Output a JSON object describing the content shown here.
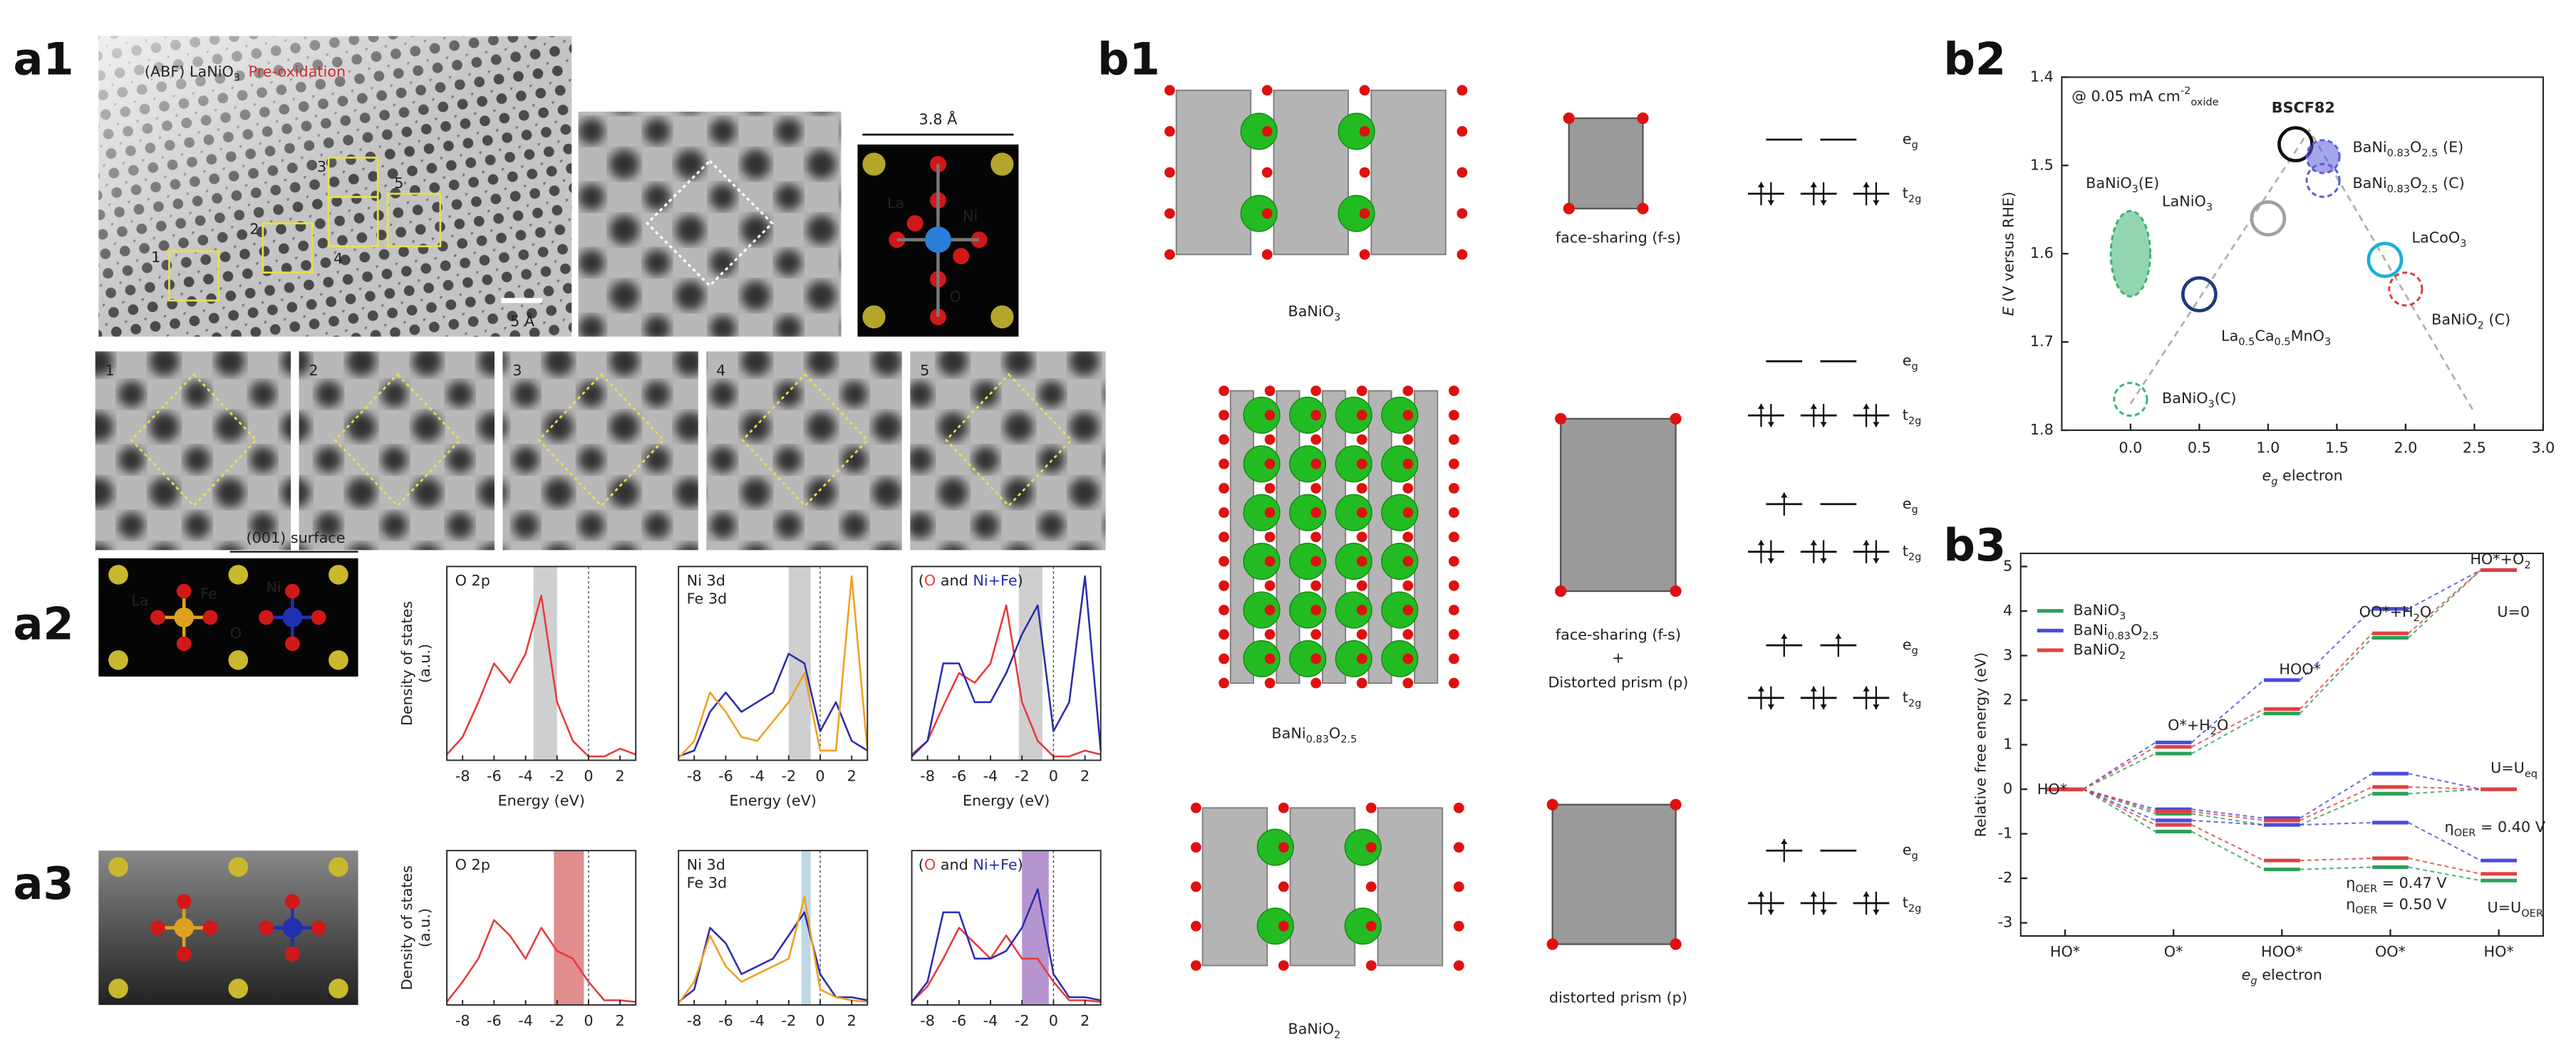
{
  "figure": {
    "panel_labels": [
      "a1",
      "a2",
      "a3",
      "b1",
      "b2",
      "b3"
    ],
    "a1": {
      "title": [
        "(ABF) LaNiO",
        {
          "text": "3",
          "style": "sub"
        }
      ],
      "condition": "Pre-oxidation",
      "scale_bar": "5 Å",
      "lattice_constant": "3.8 Å",
      "atoms": [
        "La",
        "Ni",
        "O"
      ],
      "regions": [
        "1",
        "2",
        "3",
        "4",
        "5"
      ]
    },
    "a2": {
      "surface": "(001) surface",
      "atoms": [
        "La",
        "Fe",
        "Ni",
        "O"
      ]
    },
    "b1": {
      "compounds": [
        [
          "BaNiO",
          {
            "text": "3",
            "style": "sub"
          }
        ],
        [
          "BaNi",
          {
            "text": "0.83",
            "style": "sub"
          },
          "O",
          {
            "text": "2.5",
            "style": "sub"
          }
        ],
        [
          "BaNiO",
          {
            "text": "2",
            "style": "sub"
          }
        ]
      ],
      "geometries": [
        "face-sharing (f-s)",
        "face-sharing (f-s)",
        "+",
        "Distorted prism (p)",
        "distorted prism (p)"
      ],
      "orbitals": [
        [
          "e",
          {
            "text": "g",
            "style": "sub"
          }
        ],
        [
          "t",
          {
            "text": "2g",
            "style": "sub"
          }
        ]
      ]
    }
  },
  "chart_data": [
    {
      "type": "line",
      "xlim": [
        -9,
        3
      ],
      "ylim": [
        0,
        1
      ],
      "xticks": [
        -8,
        -6,
        -4,
        -2,
        0,
        2
      ],
      "fermi_level": 0,
      "xlabel": "Energy (eV)",
      "ylabel_lines": [
        "Density of states",
        "(a.u.)"
      ],
      "x": [
        -9,
        -8,
        -7,
        -6,
        -5,
        -4,
        -3,
        -2,
        -1,
        0,
        1,
        2,
        3
      ],
      "shade": [
        -3.5,
        -2
      ],
      "shade_color": "#b5b5b5",
      "series": [
        {
          "name": "O 2p",
          "color": "#e8393a",
          "values": [
            0.03,
            0.12,
            0.3,
            0.5,
            0.4,
            0.55,
            0.85,
            0.3,
            0.1,
            0.02,
            0.02,
            0.06,
            0.03
          ]
        }
      ]
    },
    {
      "type": "line",
      "xlim": [
        -9,
        3
      ],
      "ylim": [
        0,
        1
      ],
      "xticks": [
        -8,
        -6,
        -4,
        -2,
        0,
        2
      ],
      "fermi_level": 0,
      "xlabel": "Energy (eV)",
      "x": [
        -9,
        -8,
        -7,
        -6,
        -5,
        -4,
        -3,
        -2,
        -1,
        0,
        1,
        2,
        3
      ],
      "shade": [
        -2,
        -0.6
      ],
      "shade_color": "#b5b5b5",
      "series": [
        {
          "name": "Ni 3d",
          "color": "#2b2bb0",
          "values": [
            0.02,
            0.05,
            0.25,
            0.35,
            0.25,
            0.3,
            0.35,
            0.55,
            0.5,
            0.15,
            0.3,
            0.1,
            0.05
          ]
        },
        {
          "name": "Fe 3d",
          "color": "#f0a020",
          "values": [
            0.01,
            0.1,
            0.35,
            0.25,
            0.12,
            0.1,
            0.2,
            0.3,
            0.45,
            0.05,
            0.05,
            0.95,
            0.05
          ]
        }
      ]
    },
    {
      "type": "line",
      "xlim": [
        -9,
        3
      ],
      "ylim": [
        0,
        1
      ],
      "xticks": [
        -8,
        -6,
        -4,
        -2,
        0,
        2
      ],
      "fermi_level": 0,
      "xlabel": "Energy (eV)",
      "title": [
        "(",
        {
          "text": "O",
          "color": "#e8393a"
        },
        " and ",
        {
          "text": "Ni+Fe",
          "color": "#2b2bb0"
        },
        ")"
      ],
      "x": [
        -9,
        -8,
        -7,
        -6,
        -5,
        -4,
        -3,
        -2,
        -1,
        0,
        1,
        2,
        3
      ],
      "shade": [
        -2.2,
        -0.7
      ],
      "shade_color": "#b5b5b5",
      "series": [
        {
          "color": "#e8393a",
          "values": [
            0.03,
            0.1,
            0.28,
            0.45,
            0.4,
            0.5,
            0.8,
            0.3,
            0.1,
            0.02,
            0.02,
            0.05,
            0.03
          ]
        },
        {
          "color": "#2b2bb0",
          "values": [
            0.02,
            0.1,
            0.5,
            0.5,
            0.3,
            0.3,
            0.45,
            0.65,
            0.8,
            0.15,
            0.3,
            0.95,
            0.05
          ]
        }
      ]
    },
    {
      "type": "line",
      "xlim": [
        -9,
        3
      ],
      "ylim": [
        0,
        1
      ],
      "xticks": [
        -8,
        -6,
        -4,
        -2,
        0,
        2
      ],
      "fermi_level": 0,
      "ylabel_lines": [
        "Density of states",
        "(a.u.)"
      ],
      "x": [
        -9,
        -8,
        -7,
        -6,
        -5,
        -4,
        -3,
        -2,
        -1,
        0,
        1,
        2,
        3
      ],
      "shade": [
        -2.2,
        -0.3
      ],
      "shade_color": "#d05050",
      "series": [
        {
          "name": "O 2p",
          "color": "#e8393a",
          "values": [
            0.02,
            0.15,
            0.3,
            0.55,
            0.45,
            0.3,
            0.5,
            0.35,
            0.3,
            0.15,
            0.03,
            0.03,
            0.02
          ]
        }
      ]
    },
    {
      "type": "line",
      "xlim": [
        -9,
        3
      ],
      "ylim": [
        0,
        1
      ],
      "xticks": [
        -8,
        -6,
        -4,
        -2,
        0,
        2
      ],
      "fermi_level": 0,
      "x": [
        -9,
        -8,
        -7,
        -6,
        -5,
        -4,
        -3,
        -2,
        -1,
        0,
        1,
        2,
        3
      ],
      "shade": [
        -1.2,
        -0.6
      ],
      "shade_color": "#9cc3d5",
      "series": [
        {
          "name": "Ni 3d",
          "color": "#2b2bb0",
          "values": [
            0.02,
            0.1,
            0.5,
            0.4,
            0.2,
            0.25,
            0.3,
            0.45,
            0.6,
            0.2,
            0.05,
            0.05,
            0.03
          ]
        },
        {
          "name": "Fe 3d",
          "color": "#f0a020",
          "values": [
            0.01,
            0.15,
            0.45,
            0.25,
            0.15,
            0.2,
            0.25,
            0.3,
            0.7,
            0.1,
            0.05,
            0.03,
            0.02
          ]
        }
      ]
    },
    {
      "type": "line",
      "xlim": [
        -9,
        3
      ],
      "ylim": [
        0,
        1
      ],
      "xticks": [
        -8,
        -6,
        -4,
        -2,
        0,
        2
      ],
      "fermi_level": 0,
      "title": [
        "(",
        {
          "text": "O",
          "color": "#e8393a"
        },
        " and ",
        {
          "text": "Ni+Fe",
          "color": "#2b2bb0"
        },
        ")"
      ],
      "x": [
        -9,
        -8,
        -7,
        -6,
        -5,
        -4,
        -3,
        -2,
        -1,
        0,
        1,
        2,
        3
      ],
      "shade": [
        -2,
        -0.3
      ],
      "shade_color": "#8e5bb5",
      "series": [
        {
          "color": "#e8393a",
          "values": [
            0.02,
            0.12,
            0.3,
            0.5,
            0.4,
            0.3,
            0.45,
            0.3,
            0.3,
            0.15,
            0.03,
            0.03,
            0.02
          ]
        },
        {
          "color": "#2b2bb0",
          "values": [
            0.02,
            0.15,
            0.6,
            0.6,
            0.3,
            0.3,
            0.35,
            0.5,
            0.75,
            0.2,
            0.05,
            0.05,
            0.03
          ]
        }
      ]
    },
    {
      "type": "scatter",
      "xlim": [
        -0.5,
        3
      ],
      "ylim": [
        1.4,
        1.8
      ],
      "y_inverted": true,
      "xticks": [
        {
          "value": 0,
          "label": "0.0"
        },
        0.5,
        {
          "value": 1,
          "label": "1.0"
        },
        1.5,
        {
          "value": 2,
          "label": "2.0"
        },
        2.5,
        {
          "value": 3,
          "label": "3.0"
        }
      ],
      "yticks": [
        1.4,
        1.5,
        1.6,
        1.7,
        1.8
      ],
      "xlabel": [
        {
          "text": "e",
          "style": "italic"
        },
        {
          "text": "g",
          "style": "sub italic"
        },
        " electron"
      ],
      "ylabel": [
        {
          "text": "E",
          "style": "italic"
        },
        " (V versus RHE)"
      ],
      "annotation": [
        "@ 0.05 mA cm",
        {
          "text": "-2",
          "style": "sup"
        },
        {
          "text": "oxide",
          "style": "sub"
        }
      ],
      "guide": {
        "x": [
          0,
          1.3,
          2.5
        ],
        "y": [
          1.77,
          1.46,
          1.78
        ],
        "color": "#b0b0b0"
      },
      "points": [
        {
          "name": [
            "BaNiO",
            {
              "text": "3",
              "style": "sub"
            },
            "(E)"
          ],
          "x": 0,
          "y": 1.6,
          "color": "#3cb371",
          "style": "ellipse filled dashed"
        },
        {
          "name": [
            "BaNiO",
            {
              "text": "3",
              "style": "sub"
            },
            "(C)"
          ],
          "x": 0,
          "y": 1.765,
          "color": "#3cb371",
          "style": "dashed"
        },
        {
          "name": [
            "LaNiO",
            {
              "text": "3",
              "style": "sub"
            }
          ],
          "x": 1,
          "y": 1.56,
          "color": "#a0a0a0",
          "style": "solid"
        },
        {
          "name": "BSCF82",
          "x": 1.2,
          "y": 1.476,
          "color": "#111111",
          "style": "solid bold"
        },
        {
          "name": [
            "BaNi",
            {
              "text": "0.83",
              "style": "sub"
            },
            "O",
            {
              "text": "2.5",
              "style": "sub"
            },
            " (E)"
          ],
          "x": 1.4,
          "y": 1.49,
          "color": "#5b5bdc",
          "style": "filled dashed"
        },
        {
          "name": [
            "BaNi",
            {
              "text": "0.83",
              "style": "sub"
            },
            "O",
            {
              "text": "2.5",
              "style": "sub"
            },
            " (C)"
          ],
          "x": 1.4,
          "y": 1.517,
          "color": "#5b5bdc",
          "style": "dashed"
        },
        {
          "name": [
            "La",
            {
              "text": "0.5",
              "style": "sub"
            },
            "Ca",
            {
              "text": "0.5",
              "style": "sub"
            },
            "MnO",
            {
              "text": "3",
              "style": "sub"
            }
          ],
          "x": 0.5,
          "y": 1.646,
          "color": "#1f3a7a",
          "style": "solid"
        },
        {
          "name": [
            "LaCoO",
            {
              "text": "3",
              "style": "sub"
            }
          ],
          "x": 1.85,
          "y": 1.607,
          "color": "#1ab0d8",
          "style": "solid"
        },
        {
          "name": [
            "BaNiO",
            {
              "text": "2",
              "style": "sub"
            },
            " (C)"
          ],
          "x": 2,
          "y": 1.64,
          "color": "#e03a3a",
          "style": "dashed"
        }
      ]
    },
    {
      "type": "profile",
      "categories": [
        "HO*",
        "O*",
        "HOO*",
        "OO*",
        "HO*"
      ],
      "xlabel": [
        {
          "text": "e",
          "style": "italic"
        },
        {
          "text": "g",
          "style": "sub italic"
        },
        " electron"
      ],
      "ylabel": "Relative free energy (eV)",
      "ylim": [
        -3,
        5
      ],
      "yticks": [
        -3,
        -2,
        -1,
        0,
        1,
        2,
        3,
        4,
        5
      ],
      "conditions": [
        "U=0",
        [
          "U=U",
          {
            "text": "eq",
            "style": "sub"
          }
        ],
        [
          "U=U",
          {
            "text": "OER",
            "style": "sub"
          }
        ]
      ],
      "series": [
        {
          "name": [
            "BaNiO",
            {
              "text": "3",
              "style": "sub"
            }
          ],
          "color": "#2ca05a",
          "values": [
            [
              0,
              0.8,
              1.7,
              3.4,
              4.92
            ],
            [
              0,
              -0.55,
              -0.8,
              -0.1,
              0
            ],
            [
              0,
              -0.95,
              -1.8,
              -1.75,
              -2.05
            ]
          ]
        },
        {
          "name": [
            "BaNi",
            {
              "text": "0.83",
              "style": "sub"
            },
            "O",
            {
              "text": "2.5",
              "style": "sub"
            }
          ],
          "color": "#4a4ae0",
          "values": [
            [
              0,
              1.05,
              2.45,
              4.05,
              4.92
            ],
            [
              0,
              -0.45,
              -0.65,
              0.35,
              0
            ],
            [
              0,
              -0.7,
              -0.8,
              -0.75,
              -1.6
            ]
          ]
        },
        {
          "name": [
            "BaNiO",
            {
              "text": "2",
              "style": "sub"
            }
          ],
          "color": "#e04040",
          "values": [
            [
              0,
              0.95,
              1.8,
              3.5,
              4.92
            ],
            [
              0,
              -0.5,
              -0.7,
              0.05,
              0
            ],
            [
              0,
              -0.8,
              -1.6,
              -1.55,
              -1.9
            ]
          ]
        }
      ],
      "annotations": [
        "HO*",
        [
          "O*+H",
          {
            "text": "2",
            "style": "sub"
          },
          "O"
        ],
        "HOO*",
        [
          "OO*+H",
          {
            "text": "2",
            "style": "sub"
          },
          "O"
        ],
        [
          "HO*+O",
          {
            "text": "2",
            "style": "sub"
          }
        ],
        [
          "η",
          {
            "text": "OER",
            "style": "sub"
          },
          " = 0.40 V"
        ],
        [
          "η",
          {
            "text": "OER",
            "style": "sub"
          },
          " = 0.47 V"
        ],
        [
          "η",
          {
            "text": "OER",
            "style": "sub"
          },
          " = 0.50 V"
        ]
      ]
    }
  ]
}
